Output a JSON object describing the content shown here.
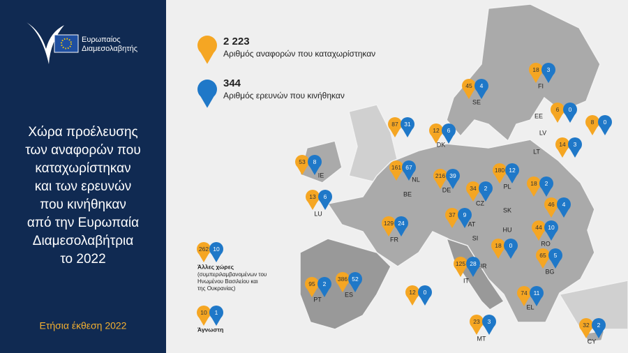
{
  "header": {
    "org_line1": "Ευρωπαίος",
    "org_line2": "Διαμεσολαβητής"
  },
  "title_lines": [
    "Χώρα προέλευσης",
    "των αναφορών που",
    "καταχωρίστηκαν",
    "και των ερευνών",
    "που κινήθηκαν",
    "από την Ευρωπαία",
    "Διαμεσολαβήτρια",
    "το 2022"
  ],
  "footer": "Ετήσια έκθεση 2022",
  "legend": {
    "complaints_total": "2 223",
    "complaints_label": "Αριθμός αναφορών που καταχωρίστηκαν",
    "inquiries_total": "344",
    "inquiries_label": "Αριθμός ερευνών που κινήθηκαν"
  },
  "countries": [
    {
      "code": "FI",
      "complaints": 18,
      "inquiries": 3
    },
    {
      "code": "SE",
      "complaints": 45,
      "inquiries": 4
    },
    {
      "code": "EE",
      "complaints": 6,
      "inquiries": 0
    },
    {
      "code": "LV",
      "complaints": 8,
      "inquiries": 0
    },
    {
      "code": "LT",
      "complaints": 14,
      "inquiries": 3
    },
    {
      "code": "DK",
      "complaints": 12,
      "inquiries": 6
    },
    {
      "code": "NL",
      "complaints": 87,
      "inquiries": 31
    },
    {
      "code": "BE",
      "complaints": 161,
      "inquiries": 67
    },
    {
      "code": "IE",
      "complaints": 53,
      "inquiries": 8
    },
    {
      "code": "LU",
      "complaints": 13,
      "inquiries": 6
    },
    {
      "code": "DE",
      "complaints": 216,
      "inquiries": 39
    },
    {
      "code": "PL",
      "complaints": 180,
      "inquiries": 12
    },
    {
      "code": "CZ",
      "complaints": 34,
      "inquiries": 2
    },
    {
      "code": "SK",
      "complaints": 18,
      "inquiries": 2
    },
    {
      "code": "AT",
      "complaints": 37,
      "inquiries": 9
    },
    {
      "code": "HU",
      "complaints": 46,
      "inquiries": 4
    },
    {
      "code": "FR",
      "complaints": 129,
      "inquiries": 24
    },
    {
      "code": "SI",
      "complaints": 18,
      "inquiries": 0
    },
    {
      "code": "HR",
      "complaints": 12,
      "inquiries": 0
    },
    {
      "code": "IT",
      "complaints": 125,
      "inquiries": 28
    },
    {
      "code": "RO",
      "complaints": 44,
      "inquiries": 10
    },
    {
      "code": "BG",
      "complaints": 65,
      "inquiries": 5
    },
    {
      "code": "PT",
      "complaints": 95,
      "inquiries": 2
    },
    {
      "code": "ES",
      "complaints": 386,
      "inquiries": 52
    },
    {
      "code": "EL",
      "complaints": 74,
      "inquiries": 11
    },
    {
      "code": "MT",
      "complaints": 23,
      "inquiries": 3
    },
    {
      "code": "CY",
      "complaints": 32,
      "inquiries": 2
    }
  ],
  "other": {
    "label": "Άλλες χώρες",
    "note_lines": [
      "(συμπεριλαμβανομένων του",
      "Ηνωμένου Βασιλείου και",
      "της Ουκρανίας)"
    ],
    "complaints": 262,
    "inquiries": 10
  },
  "unknown": {
    "label": "Άγνωστη",
    "complaints": 10,
    "inquiries": 1
  }
}
